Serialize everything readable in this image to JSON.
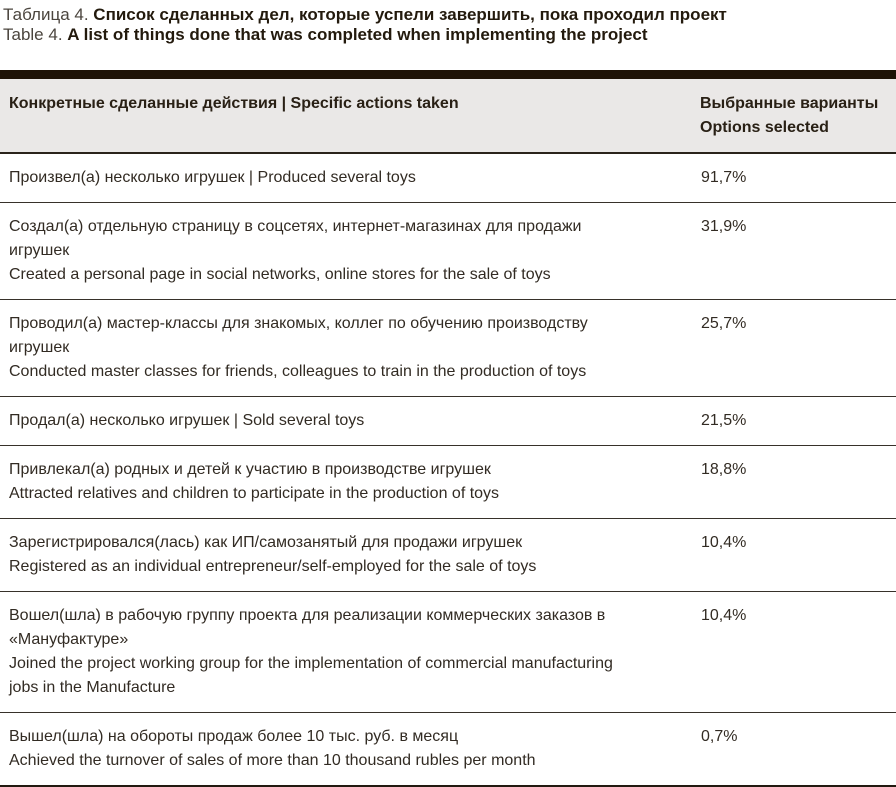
{
  "caption": {
    "line1_label": "Таблица 4.",
    "line1_text": "Список сделанных дел, которые успели завершить, пока проходил проект",
    "line2_label": "Table 4.",
    "line2_text": "A list of things done that was completed when implementing the project"
  },
  "table": {
    "header": {
      "actions_col": "Конкретные сделанные действия  |  Specific actions taken",
      "options_col_line1": "Выбранные варианты",
      "options_col_line2": "Options selected"
    },
    "rows": [
      {
        "lines": [
          "Произвел(а) несколько игрушек  |  Produced several toys"
        ],
        "value": "91,7%"
      },
      {
        "lines": [
          "Создал(а) отдельную страницу в соцсетях, интернет-магазинах для продажи игрушек",
          "Created a personal page in social networks, online stores for the sale of toys"
        ],
        "value": "31,9%"
      },
      {
        "lines": [
          "Проводил(а) мастер-классы для знакомых, коллег по обучению производству игрушек",
          "Conducted master classes for friends, colleagues to train in the production of toys"
        ],
        "value": "25,7%"
      },
      {
        "lines": [
          "Продал(а) несколько игрушек  |  Sold several toys"
        ],
        "value": "21,5%"
      },
      {
        "lines": [
          "Привлекал(а) родных и детей к участию в производстве игрушек",
          "Attracted relatives and children to participate in the production of toys"
        ],
        "value": "18,8%"
      },
      {
        "lines": [
          "Зарегистрировался(лась) как ИП/самозанятый для продажи игрушек",
          "Registered as an individual entrepreneur/self-employed for the sale of toys"
        ],
        "value": "10,4%"
      },
      {
        "lines": [
          "Вошел(шла) в рабочую группу проекта для реализации коммерческих заказов в «Мануфактуре»",
          "Joined the project working group for the implementation of commercial manufacturing jobs in the Manufacture"
        ],
        "value": "10,4%"
      },
      {
        "lines": [
          "Вышел(шла) на обороты продаж более 10 тыс. руб. в месяц",
          "Achieved the turnover of sales of more than 10 thousand rubles per month"
        ],
        "value": "0,7%"
      }
    ],
    "colors": {
      "top_bar": "#1e1206",
      "header_background": "#eae8e7",
      "header_text": "#292015",
      "body_text": "#322b23",
      "row_divider": "#37312a",
      "caption_bold": "#231a0d",
      "caption_label": "#4b453e"
    }
  }
}
